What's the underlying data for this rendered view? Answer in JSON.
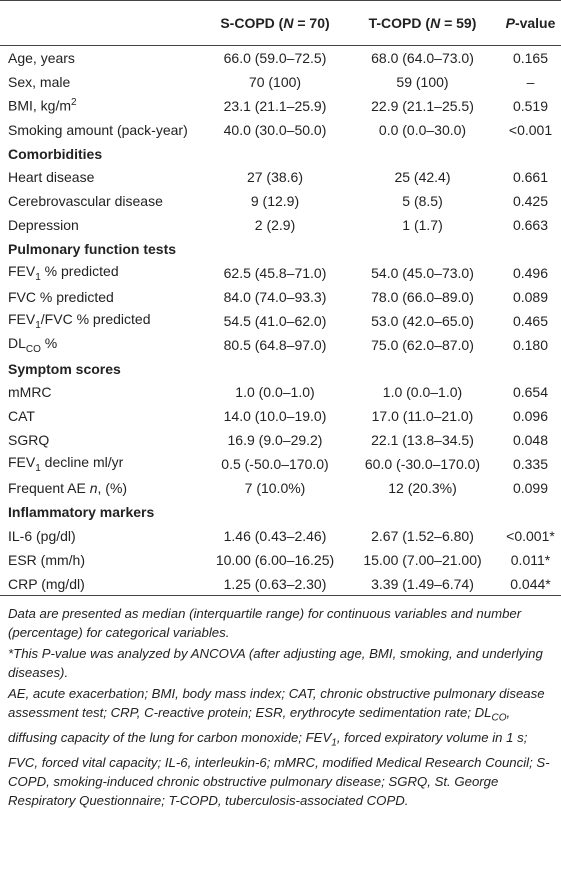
{
  "table": {
    "columns": [
      [
        "S-COPD (",
        "N",
        " = 70)"
      ],
      [
        "T-COPD (",
        "N",
        " = 59)"
      ],
      [
        "P",
        "-value"
      ]
    ],
    "rows": [
      {
        "label": "Age, years",
        "values": [
          "66.0 (59.0–72.5)",
          "68.0 (64.0–73.0)",
          "0.165"
        ]
      },
      {
        "label": "Sex, male",
        "values": [
          "70 (100)",
          "59 (100)",
          "–"
        ]
      },
      {
        "label": [
          "BMI, kg/m",
          "2"
        ],
        "values": [
          "23.1 (21.1–25.9)",
          "22.9 (21.1–25.5)",
          "0.519"
        ]
      },
      {
        "label": "Smoking amount (pack-year)",
        "values": [
          "40.0 (30.0–50.0)",
          "0.0 (0.0–30.0)",
          "<0.001"
        ]
      },
      {
        "section": "Comorbidities"
      },
      {
        "label": "Heart disease",
        "values": [
          "27 (38.6)",
          "25 (42.4)",
          "0.661"
        ]
      },
      {
        "label": "Cerebrovascular disease",
        "values": [
          "9 (12.9)",
          "5 (8.5)",
          "0.425"
        ]
      },
      {
        "label": "Depression",
        "values": [
          "2 (2.9)",
          "1 (1.7)",
          "0.663"
        ]
      },
      {
        "section": "Pulmonary function tests"
      },
      {
        "label": [
          "FEV",
          "1",
          " % predicted"
        ],
        "values": [
          "62.5 (45.8–71.0)",
          "54.0 (45.0–73.0)",
          "0.496"
        ]
      },
      {
        "label": "FVC % predicted",
        "values": [
          "84.0 (74.0–93.3)",
          "78.0 (66.0–89.0)",
          "0.089"
        ]
      },
      {
        "label": [
          "FEV",
          "1",
          "/FVC % predicted"
        ],
        "values": [
          "54.5 (41.0–62.0)",
          "53.0 (42.0–65.0)",
          "0.465"
        ]
      },
      {
        "label": [
          "DL",
          "CO",
          " %"
        ],
        "values": [
          "80.5 (64.8–97.0)",
          "75.0 (62.0–87.0)",
          "0.180"
        ]
      },
      {
        "section": "Symptom scores"
      },
      {
        "label": "mMRC",
        "values": [
          "1.0 (0.0–1.0)",
          "1.0 (0.0–1.0)",
          "0.654"
        ]
      },
      {
        "label": "CAT",
        "values": [
          "14.0 (10.0–19.0)",
          "17.0 (11.0–21.0)",
          "0.096"
        ]
      },
      {
        "label": "SGRQ",
        "values": [
          "16.9 (9.0–29.2)",
          "22.1 (13.8–34.5)",
          "0.048"
        ]
      },
      {
        "label": [
          "FEV",
          "1",
          " decline ml/yr"
        ],
        "values": [
          "0.5 (-50.0–170.0)",
          "60.0 (-30.0–170.0)",
          "0.335"
        ]
      },
      {
        "label": [
          "Frequent AE ",
          "n",
          ", (%)"
        ],
        "values": [
          "7 (10.0%)",
          "12 (20.3%)",
          "0.099"
        ]
      },
      {
        "section": "Inflammatory markers"
      },
      {
        "label": "IL-6 (pg/dl)",
        "values": [
          "1.46 (0.43–2.46)",
          "2.67 (1.52–6.80)",
          "<0.001*"
        ]
      },
      {
        "label": "ESR (mm/h)",
        "values": [
          "10.00 (6.00–16.25)",
          "15.00 (7.00–21.00)",
          "0.011*"
        ]
      },
      {
        "label": "CRP (mg/dl)",
        "values": [
          "1.25 (0.63–2.30)",
          "3.39 (1.49–6.74)",
          "0.044*"
        ]
      }
    ]
  },
  "notes": [
    "Data are presented as median (interquartile range) for continuous variables and number (percentage) for categorical variables.",
    "*This P-value was analyzed by ANCOVA (after adjusting age, BMI, smoking, and underlying diseases).",
    [
      "AE, acute exacerbation; BMI, body mass index; CAT, chronic obstructive pulmonary disease assessment test; CRP, C-reactive protein; ESR, erythrocyte sedimentation rate; DL",
      "CO",
      ", diffusing capacity of the lung for carbon monoxide; FEV",
      "1",
      ", forced expiratory volume in 1 s; FVC, forced vital capacity; IL-6, interleukin-6; mMRC, modified Medical Research Council; S-COPD, smoking-induced chronic obstructive pulmonary disease; SGRQ, St. George Respiratory Questionnaire; T-COPD, tuberculosis-associated COPD."
    ]
  ]
}
